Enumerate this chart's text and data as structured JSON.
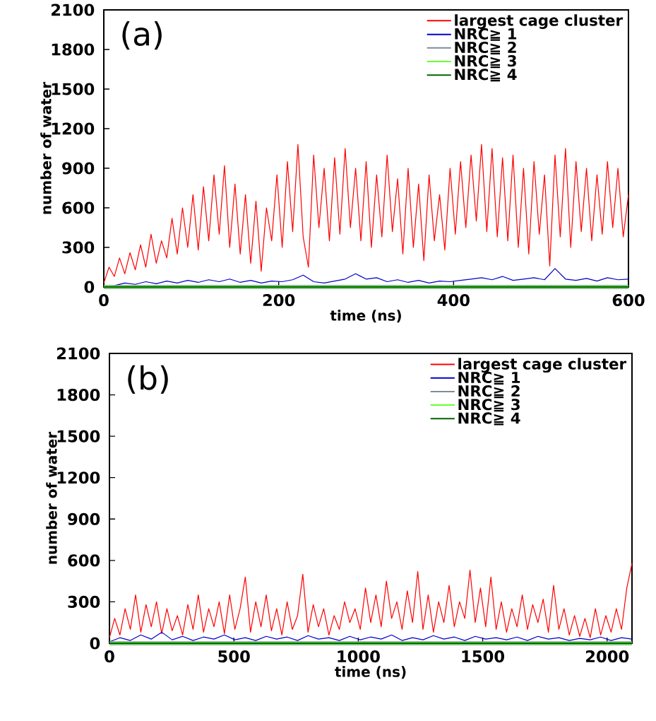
{
  "chart_data": [
    {
      "type": "line",
      "annotations": [
        "(a)"
      ],
      "xlabel": "time (ns)",
      "ylabel": "number of water",
      "xlim": [
        0,
        600
      ],
      "xticks": [
        0,
        200,
        400,
        600
      ],
      "ylim": [
        0,
        2100
      ],
      "yticks": [
        0,
        300,
        600,
        900,
        1200,
        1500,
        1800,
        2100
      ],
      "legend": "top right",
      "marker": "none",
      "line_style": "solid",
      "series": [
        {
          "name": "largest cage cluster",
          "color": "#ff0000",
          "x": [
            0,
            6,
            12,
            18,
            24,
            30,
            36,
            42,
            48,
            54,
            60,
            66,
            72,
            78,
            84,
            90,
            96,
            102,
            108,
            114,
            120,
            126,
            132,
            138,
            144,
            150,
            156,
            162,
            168,
            174,
            180,
            186,
            192,
            198,
            204,
            210,
            216,
            222,
            228,
            234,
            240,
            246,
            252,
            258,
            264,
            270,
            276,
            282,
            288,
            294,
            300,
            306,
            312,
            318,
            324,
            330,
            336,
            342,
            348,
            354,
            360,
            366,
            372,
            378,
            384,
            390,
            396,
            402,
            408,
            414,
            420,
            426,
            432,
            438,
            444,
            450,
            456,
            462,
            468,
            474,
            480,
            486,
            492,
            498,
            504,
            510,
            516,
            522,
            528,
            534,
            540,
            546,
            552,
            558,
            564,
            570,
            576,
            582,
            588,
            594,
            600
          ],
          "values": [
            30,
            150,
            80,
            220,
            100,
            260,
            130,
            320,
            150,
            400,
            180,
            350,
            220,
            520,
            250,
            600,
            300,
            700,
            280,
            760,
            350,
            850,
            400,
            920,
            300,
            780,
            250,
            700,
            180,
            650,
            120,
            600,
            350,
            850,
            300,
            950,
            420,
            1080,
            380,
            150,
            1000,
            450,
            900,
            350,
            980,
            400,
            1050,
            450,
            900,
            350,
            950,
            300,
            850,
            380,
            1000,
            420,
            820,
            250,
            900,
            300,
            780,
            200,
            850,
            350,
            700,
            280,
            900,
            400,
            950,
            450,
            1000,
            500,
            1080,
            420,
            1050,
            380,
            980,
            350,
            1000,
            300,
            900,
            250,
            950,
            400,
            850,
            160,
            1000,
            380,
            1050,
            300,
            950,
            420,
            900,
            350,
            850,
            400,
            950,
            450,
            900,
            380,
            700
          ]
        },
        {
          "name": "NRC≧ 1",
          "color": "#0000cc",
          "x": [
            0,
            12,
            24,
            36,
            48,
            60,
            72,
            84,
            96,
            108,
            120,
            132,
            144,
            156,
            168,
            180,
            192,
            204,
            216,
            228,
            240,
            252,
            264,
            276,
            288,
            300,
            312,
            324,
            336,
            348,
            360,
            372,
            384,
            396,
            408,
            420,
            432,
            444,
            456,
            468,
            480,
            492,
            504,
            516,
            528,
            540,
            552,
            564,
            576,
            588,
            600
          ],
          "values": [
            0,
            10,
            30,
            20,
            40,
            25,
            45,
            30,
            50,
            35,
            55,
            40,
            60,
            35,
            50,
            30,
            45,
            40,
            55,
            90,
            40,
            30,
            45,
            60,
            100,
            60,
            70,
            40,
            55,
            35,
            50,
            30,
            45,
            40,
            50,
            60,
            70,
            55,
            80,
            50,
            60,
            70,
            55,
            140,
            60,
            50,
            65,
            45,
            70,
            55,
            60
          ]
        },
        {
          "name": "NRC≧ 2",
          "color": "#7f8c9a",
          "x": [
            0,
            600
          ],
          "values": [
            0,
            0
          ]
        },
        {
          "name": "NRC≧ 3",
          "color": "#66ff33",
          "x": [
            0,
            600
          ],
          "values": [
            0,
            0
          ]
        },
        {
          "name": "NRC≧ 4",
          "color": "#006400",
          "x": [
            0,
            600
          ],
          "values": [
            0,
            0
          ]
        }
      ]
    },
    {
      "type": "line",
      "annotations": [
        "(b)"
      ],
      "xlabel": "time (ns)",
      "ylabel": "number of water",
      "xlim": [
        0,
        2100
      ],
      "xticks": [
        0,
        500,
        1000,
        1500,
        2000
      ],
      "ylim": [
        0,
        2100
      ],
      "yticks": [
        0,
        300,
        600,
        900,
        1200,
        1500,
        1800,
        2100
      ],
      "legend": "top right",
      "marker": "none",
      "line_style": "solid",
      "series": [
        {
          "name": "largest cage cluster",
          "color": "#ff0000",
          "x": [
            0,
            21,
            42,
            63,
            84,
            105,
            126,
            147,
            168,
            189,
            210,
            231,
            252,
            273,
            294,
            315,
            336,
            357,
            378,
            399,
            420,
            441,
            462,
            483,
            504,
            525,
            546,
            567,
            588,
            609,
            630,
            651,
            672,
            693,
            714,
            735,
            756,
            777,
            798,
            819,
            840,
            861,
            882,
            903,
            924,
            945,
            966,
            987,
            1008,
            1029,
            1050,
            1071,
            1092,
            1113,
            1134,
            1155,
            1176,
            1197,
            1218,
            1239,
            1260,
            1281,
            1302,
            1323,
            1344,
            1365,
            1386,
            1407,
            1428,
            1449,
            1470,
            1491,
            1512,
            1533,
            1554,
            1575,
            1596,
            1617,
            1638,
            1659,
            1680,
            1701,
            1722,
            1743,
            1764,
            1785,
            1806,
            1827,
            1848,
            1869,
            1890,
            1911,
            1932,
            1953,
            1974,
            1995,
            2016,
            2037,
            2058,
            2079,
            2100
          ],
          "values": [
            40,
            180,
            60,
            250,
            100,
            350,
            80,
            280,
            120,
            300,
            70,
            250,
            90,
            200,
            60,
            280,
            100,
            350,
            80,
            250,
            120,
            300,
            70,
            350,
            100,
            250,
            480,
            80,
            300,
            120,
            350,
            90,
            250,
            60,
            300,
            100,
            200,
            500,
            80,
            280,
            120,
            250,
            60,
            200,
            100,
            300,
            150,
            250,
            100,
            400,
            150,
            350,
            120,
            450,
            180,
            300,
            100,
            380,
            150,
            520,
            100,
            350,
            80,
            300,
            150,
            420,
            120,
            300,
            180,
            530,
            150,
            400,
            120,
            480,
            100,
            300,
            80,
            250,
            120,
            350,
            100,
            280,
            150,
            320,
            80,
            420,
            100,
            250,
            60,
            200,
            50,
            180,
            40,
            250,
            60,
            200,
            80,
            250,
            100,
            400,
            580
          ]
        },
        {
          "name": "NRC≧ 1",
          "color": "#0000cc",
          "x": [
            0,
            42,
            84,
            126,
            168,
            210,
            252,
            294,
            336,
            378,
            420,
            462,
            504,
            546,
            588,
            630,
            672,
            714,
            756,
            798,
            840,
            882,
            924,
            966,
            1008,
            1050,
            1092,
            1134,
            1176,
            1218,
            1260,
            1302,
            1344,
            1386,
            1428,
            1470,
            1512,
            1554,
            1596,
            1638,
            1680,
            1722,
            1764,
            1806,
            1848,
            1890,
            1932,
            1974,
            2016,
            2058,
            2100
          ],
          "values": [
            10,
            40,
            20,
            60,
            30,
            80,
            25,
            50,
            20,
            45,
            30,
            60,
            25,
            40,
            20,
            50,
            30,
            45,
            20,
            55,
            30,
            40,
            20,
            50,
            25,
            45,
            30,
            60,
            20,
            40,
            25,
            55,
            30,
            45,
            20,
            50,
            30,
            40,
            25,
            45,
            20,
            50,
            30,
            40,
            20,
            35,
            25,
            45,
            20,
            40,
            30
          ]
        },
        {
          "name": "NRC≧ 2",
          "color": "#7f8c9a",
          "x": [
            0,
            2100
          ],
          "values": [
            0,
            0
          ]
        },
        {
          "name": "NRC≧ 3",
          "color": "#66ff33",
          "x": [
            0,
            2100
          ],
          "values": [
            0,
            0
          ]
        },
        {
          "name": "NRC≧ 4",
          "color": "#006400",
          "x": [
            0,
            2100
          ],
          "values": [
            0,
            0
          ]
        }
      ]
    }
  ]
}
